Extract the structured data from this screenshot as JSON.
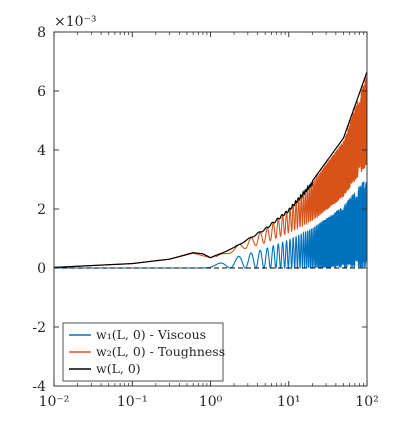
{
  "chart_data": {
    "type": "line",
    "title": "",
    "xlabel": "",
    "ylabel": "",
    "x_scale": "log",
    "y_multiplier_label": "×10⁻³",
    "xlim": [
      0.01,
      100
    ],
    "ylim": [
      -4,
      8
    ],
    "grid": false,
    "legend_position": "bottom-left",
    "x_ticks": [
      {
        "value": 0.01,
        "label": "10⁻²"
      },
      {
        "value": 0.1,
        "label": "10⁻¹"
      },
      {
        "value": 1,
        "label": "10⁰"
      },
      {
        "value": 10,
        "label": "10¹"
      },
      {
        "value": 100,
        "label": "10²"
      }
    ],
    "y_ticks": [
      {
        "value": -4,
        "label": "-4"
      },
      {
        "value": -2,
        "label": "-2"
      },
      {
        "value": 0,
        "label": "0"
      },
      {
        "value": 2,
        "label": "2"
      },
      {
        "value": 4,
        "label": "4"
      },
      {
        "value": 6,
        "label": "6"
      },
      {
        "value": 8,
        "label": "8"
      }
    ],
    "series": [
      {
        "name": "w₁(L, 0) - Viscous",
        "color": "#0072BD",
        "points": [
          [
            0.01,
            0.0
          ],
          [
            0.1,
            0.0
          ],
          [
            0.5,
            0.0
          ],
          [
            0.8,
            0.0
          ],
          [
            1.0,
            0.05
          ],
          [
            2.0,
            0.0
          ],
          [
            5.0,
            0.0
          ],
          [
            10.0,
            0.0
          ],
          [
            30.0,
            0.0
          ],
          [
            100.0,
            0.0
          ]
        ],
        "oscillation": {
          "start_x": 0.8,
          "lower": 0.0,
          "upper_envelope": [
            [
              1.0,
              0.05
            ],
            [
              2.0,
              0.35
            ],
            [
              5.0,
              0.65
            ],
            [
              10.0,
              0.95
            ],
            [
              20.0,
              1.35
            ],
            [
              50.0,
              2.1
            ],
            [
              100.0,
              3.1
            ]
          ]
        }
      },
      {
        "name": "w₂(L, 0) - Toughness",
        "color": "#D95319",
        "points": [
          [
            0.01,
            0.02
          ],
          [
            0.1,
            0.15
          ],
          [
            0.3,
            0.3
          ],
          [
            0.6,
            0.5
          ],
          [
            1.0,
            0.35
          ],
          [
            2.0,
            0.6
          ],
          [
            5.0,
            1.0
          ],
          [
            10.0,
            1.4
          ],
          [
            30.0,
            2.3
          ],
          [
            100.0,
            3.5
          ]
        ],
        "oscillation": {
          "start_x": 1.2,
          "lower_envelope": [
            [
              1.2,
              0.35
            ],
            [
              2.0,
              0.55
            ],
            [
              5.0,
              0.85
            ],
            [
              10.0,
              1.2
            ],
            [
              20.0,
              1.6
            ],
            [
              50.0,
              2.4
            ],
            [
              100.0,
              3.5
            ]
          ],
          "upper_envelope": [
            [
              1.2,
              0.4
            ],
            [
              2.0,
              0.7
            ],
            [
              5.0,
              1.3
            ],
            [
              10.0,
              1.95
            ],
            [
              20.0,
              2.9
            ],
            [
              50.0,
              4.3
            ],
            [
              100.0,
              6.6
            ]
          ]
        }
      },
      {
        "name": "w(L, 0)",
        "color": "#000000",
        "points": [
          [
            0.01,
            0.02
          ],
          [
            0.1,
            0.15
          ],
          [
            0.3,
            0.3
          ],
          [
            0.6,
            0.52
          ],
          [
            0.8,
            0.48
          ],
          [
            1.0,
            0.35
          ],
          [
            2.0,
            0.7
          ],
          [
            5.0,
            1.35
          ],
          [
            10.0,
            2.0
          ],
          [
            20.0,
            2.95
          ],
          [
            50.0,
            4.4
          ],
          [
            100.0,
            6.65
          ]
        ]
      }
    ],
    "reference_line": {
      "y": 0,
      "style": "dashed",
      "color": "#000000"
    }
  }
}
